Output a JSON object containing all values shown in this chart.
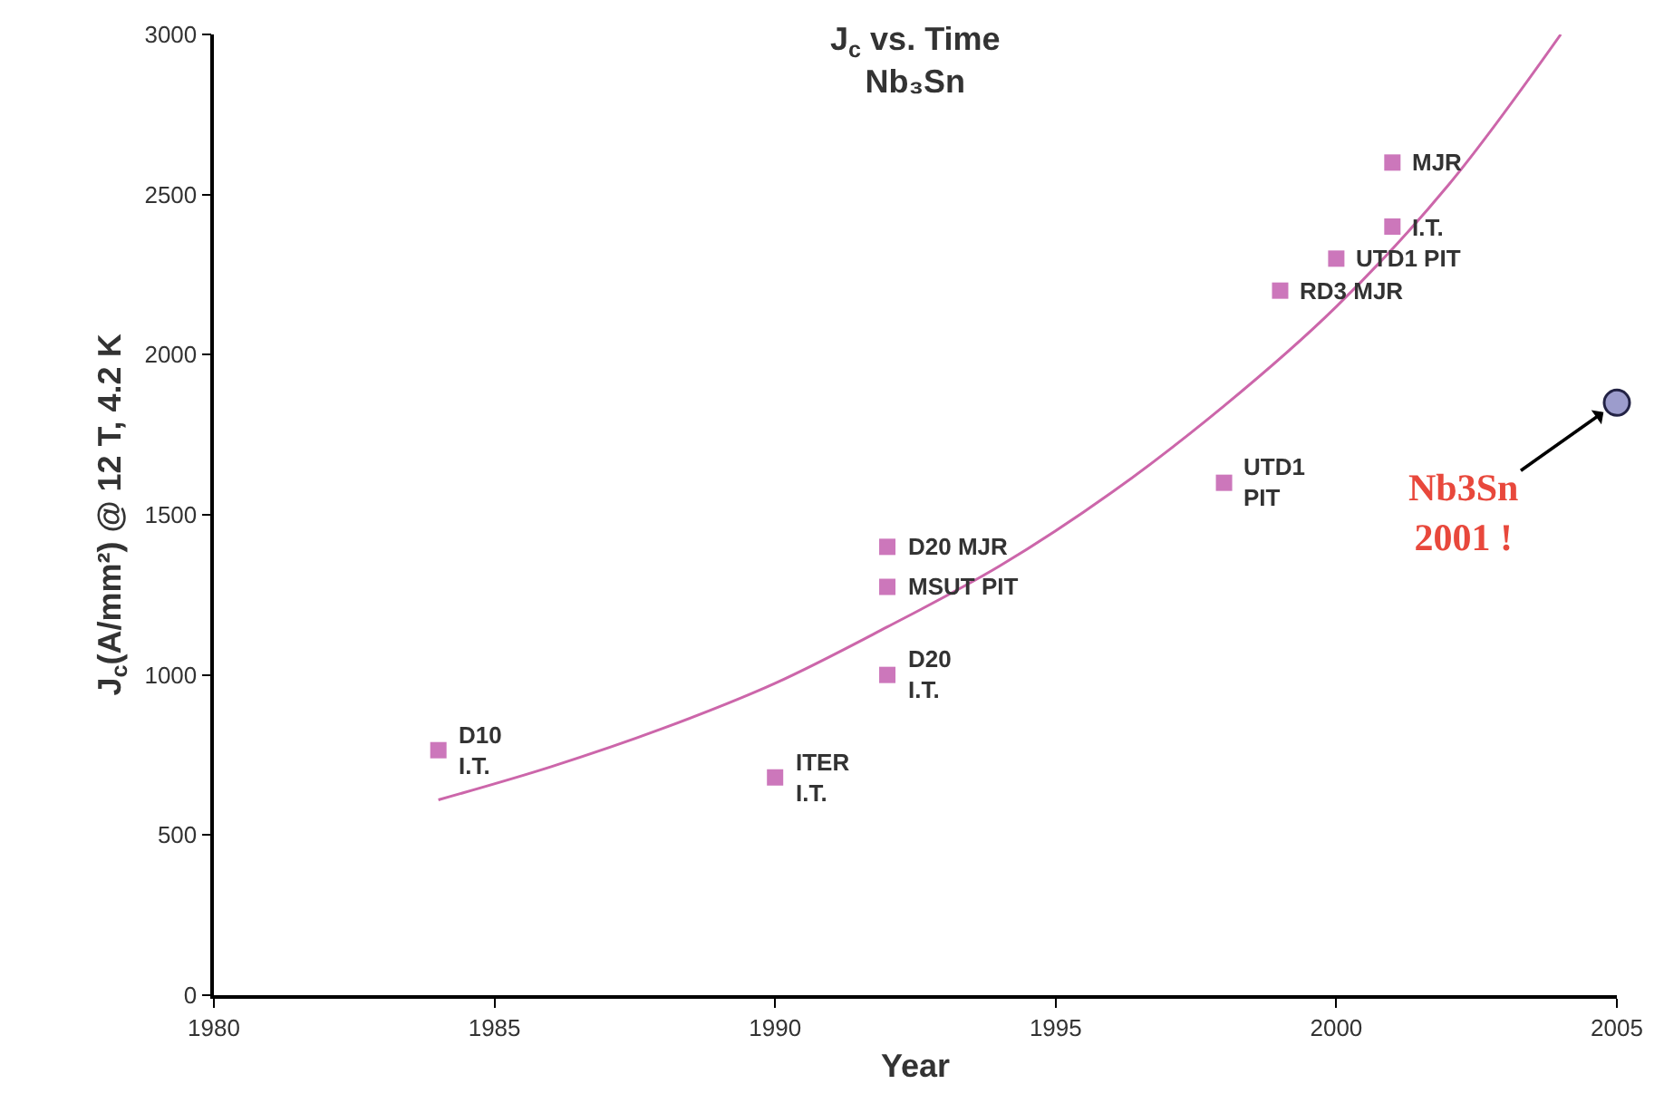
{
  "chart_data": {
    "type": "scatter",
    "title": "J$_{c}$ vs. Time\nNb₃Sn",
    "xlabel": "Year",
    "ylabel": "J$_{c}$(A/mm²) @ 12 T, 4.2 K",
    "xlim": [
      1980,
      2005
    ],
    "xticks": [
      1980,
      1985,
      1990,
      1995,
      2000,
      2005
    ],
    "ylim": [
      0,
      3000
    ],
    "yticks": [
      0,
      500,
      1000,
      1500,
      2000,
      2500,
      3000
    ],
    "series": [
      {
        "marker": "square",
        "color": "#cc77bb",
        "x": [
          1984,
          1990,
          1992,
          1992,
          1992,
          1998,
          1999,
          2000,
          2001,
          2001
        ],
        "values": [
          765,
          680,
          1400,
          1275,
          1000,
          1600,
          2200,
          2300,
          2400,
          2600
        ]
      },
      {
        "type": "line",
        "marker": "none",
        "color": "#cc66aa",
        "x": [
          1984,
          1986,
          1988,
          1990,
          1992,
          1994,
          1996,
          1998,
          2000,
          2002,
          2004
        ],
        "values": [
          610,
          713,
          833,
          974,
          1150,
          1340,
          1570,
          1840,
          2150,
          2530,
          3000
        ]
      },
      {
        "type": "scatter",
        "marker": "circle",
        "color": "#9c9ccc",
        "x": [
          2005
        ],
        "values": [
          1850
        ]
      }
    ],
    "annotations": [
      {
        "text": "D10\nI.T.",
        "x": 1984,
        "y": 765
      },
      {
        "text": "ITER\nI.T.",
        "x": 1990,
        "y": 680
      },
      {
        "text": "D20 MJR",
        "x": 1992,
        "y": 1400
      },
      {
        "text": "MSUT PIT",
        "x": 1992,
        "y": 1275
      },
      {
        "text": "D20\nI.T.",
        "x": 1992,
        "y": 1000
      },
      {
        "text": "UTD1\nPIT",
        "x": 1998,
        "y": 1600
      },
      {
        "text": "RD3 MJR",
        "x": 1999,
        "y": 2200
      },
      {
        "text": "UTD1 PIT",
        "x": 2000,
        "y": 2300
      },
      {
        "text": "I.T.",
        "x": 2001,
        "y": 2400
      },
      {
        "text": "MJR",
        "x": 2001,
        "y": 2600
      },
      {
        "text": "Nb3Sn\n2001 !",
        "x": 2005,
        "y": 1850
      }
    ]
  }
}
